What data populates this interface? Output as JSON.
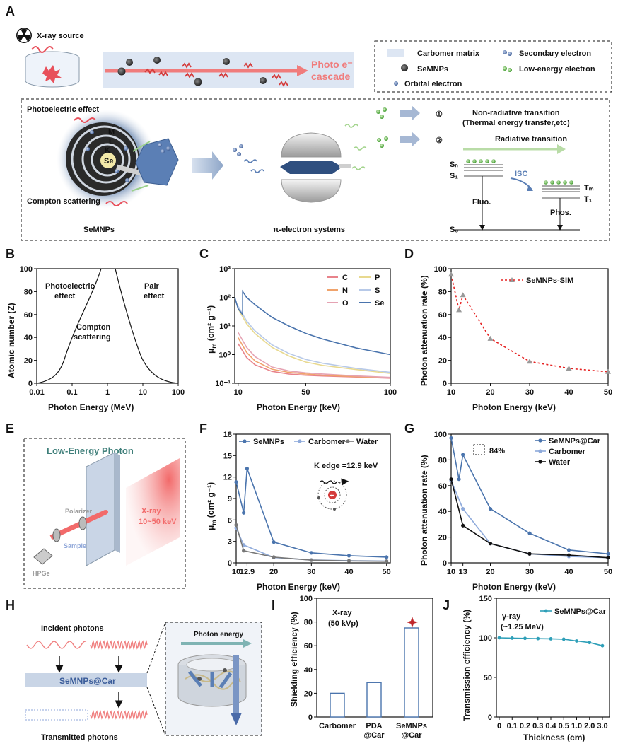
{
  "panel_labels": [
    "A",
    "B",
    "C",
    "D",
    "E",
    "F",
    "G",
    "H",
    "I",
    "J"
  ],
  "panelA": {
    "xray_source": "X-ray source",
    "cascade": "Photo e⁻\ncascade",
    "cascade_l1": "Photo e⁻",
    "cascade_l2": "cascade",
    "legend": [
      "Carbomer matrix",
      "Secondary electron",
      "SeMNPs",
      "Low-energy electron",
      "Orbital electron"
    ],
    "photoelectric": "Photoelectric effect",
    "compton": "Compton scattering",
    "shells": [
      "M",
      "L",
      "K",
      "Se"
    ],
    "semnps": "SeMNPs",
    "pi_systems": "π-electron systems",
    "step1_num": "①",
    "step1": "Non-radiative transition",
    "step1_sub": "(Thermal energy transfer,etc)",
    "step2_num": "②",
    "step2": "Radiative transition",
    "levels": [
      "Sₙ",
      "S₁",
      "S₀",
      "Tₘ",
      "T₁"
    ],
    "isc": "ISC",
    "fluo": "Fluo.",
    "phos": "Phos."
  },
  "panelB": {
    "xlabel": "Photon Energy (MeV)",
    "ylabel": "Atomic number (Z)",
    "xticks": [
      "0.01",
      "0.1",
      "1",
      "10",
      "100"
    ],
    "yticks": [
      "0",
      "20",
      "40",
      "60",
      "80",
      "100"
    ],
    "regions": [
      "Photoelectric",
      "effect",
      "Compton",
      "scattering",
      "Pair",
      "effect"
    ]
  },
  "chart_data": [
    {
      "panel": "C",
      "type": "line",
      "xlabel": "Photon Energy (keV)",
      "ylabel": "μm (cm² g⁻¹)",
      "ylabel_main": "μ",
      "ylabel_sub": "m",
      "ylabel_rest": " (cm² g⁻¹)",
      "xlim": [
        8,
        100
      ],
      "ylim_log": [
        0.1,
        1000
      ],
      "xticks": [
        "10",
        "50",
        "100"
      ],
      "yticks": [
        "10⁻¹",
        "10⁰",
        "10¹",
        "10²",
        "10³"
      ],
      "series": [
        {
          "name": "C",
          "color": "#e8838b",
          "x": [
            10,
            15,
            20,
            30,
            40,
            50,
            60,
            80,
            100
          ],
          "y": [
            2.4,
            0.8,
            0.44,
            0.26,
            0.21,
            0.19,
            0.18,
            0.165,
            0.15
          ]
        },
        {
          "name": "N",
          "color": "#f0a36b",
          "x": [
            10,
            15,
            20,
            30,
            40,
            50,
            60,
            80,
            100
          ],
          "y": [
            3.9,
            1.2,
            0.6,
            0.31,
            0.24,
            0.21,
            0.19,
            0.17,
            0.155
          ]
        },
        {
          "name": "O",
          "color": "#e5a3b3",
          "x": [
            10,
            15,
            20,
            30,
            40,
            50,
            60,
            80,
            100
          ],
          "y": [
            5.9,
            1.8,
            0.85,
            0.37,
            0.27,
            0.23,
            0.21,
            0.18,
            0.16
          ]
        },
        {
          "name": "P",
          "color": "#e8d98f",
          "x": [
            10,
            15,
            20,
            30,
            40,
            50,
            60,
            80,
            100
          ],
          "y": [
            40,
            12,
            5.4,
            1.8,
            0.9,
            0.55,
            0.42,
            0.3,
            0.22
          ]
        },
        {
          "name": "S",
          "color": "#b7c9e8",
          "x": [
            10,
            15,
            20,
            30,
            40,
            50,
            60,
            80,
            100
          ],
          "y": [
            49,
            15,
            6.7,
            2.2,
            1.1,
            0.68,
            0.5,
            0.33,
            0.24
          ]
        },
        {
          "name": "Se",
          "color": "#4a74ad",
          "x": [
            8,
            10,
            12.66,
            12.66,
            15,
            20,
            30,
            40,
            50,
            60,
            80,
            100
          ],
          "y": [
            100,
            40,
            25,
            160,
            100,
            55,
            20,
            10,
            5.5,
            3.5,
            1.7,
            1.0
          ]
        }
      ]
    },
    {
      "panel": "D",
      "type": "line",
      "xlabel": "Photon Energy (keV)",
      "ylabel": "Photon attenuation rate (%)",
      "xlim": [
        10,
        50
      ],
      "ylim": [
        0,
        100
      ],
      "xticks": [
        "10",
        "20",
        "30",
        "40",
        "50"
      ],
      "yticks": [
        "0",
        "20",
        "40",
        "60",
        "80",
        "100"
      ],
      "series": [
        {
          "name": "SeMNPs-SIM",
          "color": "#e62222",
          "x": [
            10,
            12,
            13,
            20,
            30,
            40,
            50
          ],
          "y": [
            95,
            64,
            77,
            39,
            19,
            13,
            10
          ]
        }
      ]
    },
    {
      "panel": "F",
      "type": "line",
      "xlabel": "Photon Energy (keV)",
      "ylabel": "μm (cm² g⁻¹)",
      "ylabel_main": "μ",
      "ylabel_sub": "m",
      "ylabel_rest": " (cm² g⁻¹)",
      "xlim": [
        10,
        51
      ],
      "ylim": [
        0,
        18
      ],
      "xticks": [
        "10",
        "12.9",
        "20",
        "30",
        "40",
        "50"
      ],
      "yticks": [
        "0",
        "3",
        "6",
        "9",
        "12",
        "15",
        "18"
      ],
      "annotation": "K edge =12.9 keV",
      "series": [
        {
          "name": "SeMNPs",
          "color": "#4a74ad",
          "x": [
            10,
            12,
            12.9,
            20,
            30,
            40,
            50
          ],
          "y": [
            11.3,
            7.0,
            13.2,
            2.9,
            1.4,
            1.0,
            0.8
          ]
        },
        {
          "name": "Carbomer",
          "color": "#8eaadb",
          "x": [
            10,
            12,
            20,
            30,
            40,
            50
          ],
          "y": [
            4.9,
            2.5,
            0.75,
            0.4,
            0.3,
            0.25
          ]
        },
        {
          "name": "Water",
          "color": "#777777",
          "x": [
            10,
            12,
            20,
            30,
            40,
            50
          ],
          "y": [
            5.3,
            1.7,
            0.8,
            0.38,
            0.27,
            0.22
          ]
        }
      ]
    },
    {
      "panel": "G",
      "type": "line",
      "xlabel": "Photon Energy (keV)",
      "ylabel": "Photon attenuation rate (%)",
      "xlim": [
        10,
        50
      ],
      "ylim": [
        0,
        100
      ],
      "xticks": [
        "10",
        "13",
        "20",
        "30",
        "40",
        "50"
      ],
      "yticks": [
        "0",
        "20",
        "40",
        "60",
        "80",
        "100"
      ],
      "annotation": "84%",
      "series": [
        {
          "name": "SeMNPs@Car",
          "color": "#4a74ad",
          "x": [
            10,
            12,
            13,
            20,
            30,
            40,
            50
          ],
          "y": [
            97,
            65,
            84,
            42,
            23,
            10,
            7
          ]
        },
        {
          "name": "Carbomer",
          "color": "#8eaadb",
          "x": [
            10,
            13,
            20,
            30,
            40,
            50
          ],
          "y": [
            64,
            42,
            15,
            7,
            5,
            4
          ]
        },
        {
          "name": "Water",
          "color": "#111111",
          "x": [
            10,
            13,
            20,
            30,
            40,
            50
          ],
          "y": [
            65,
            29,
            15,
            7,
            6,
            4
          ]
        }
      ]
    },
    {
      "panel": "I",
      "type": "bar",
      "title": "X-ray",
      "subtitle": "(50 kVp)",
      "ylabel": "Shielding efficiency (%)",
      "ylim": [
        0,
        100
      ],
      "yticks": [
        "0",
        "20",
        "40",
        "60",
        "80",
        "100"
      ],
      "categories": [
        "Carbomer",
        "PDA\n@Car",
        "SeMNPs\n@Car"
      ],
      "values": [
        20,
        29,
        75
      ]
    },
    {
      "panel": "J",
      "type": "line",
      "title": "γ-ray",
      "subtitle": "(~1.25 MeV)",
      "xlabel": "Thickness (cm)",
      "ylabel": "Transmission efficiency (%)",
      "ylim": [
        0,
        150
      ],
      "xticks": [
        "0",
        "0.1",
        "0.2",
        "0.3",
        "0.4",
        "0.5",
        "1.0",
        "2.0",
        "3.0"
      ],
      "yticks": [
        "0",
        "50",
        "100",
        "150"
      ],
      "series": [
        {
          "name": "SeMNPs@Car",
          "color": "#2e9fb8",
          "x": [
            "0",
            "0.1",
            "0.2",
            "0.3",
            "0.4",
            "0.5",
            "1.0",
            "2.0",
            "3.0"
          ],
          "y": [
            100,
            99.6,
            99.3,
            99,
            98.7,
            98.3,
            96,
            94,
            90
          ]
        }
      ]
    }
  ],
  "panelE": {
    "title": "Low-Energy Photon",
    "polarizer": "Polarizer",
    "sample": "Sample",
    "detector": "HPGe",
    "xray": "X-ray",
    "range": "10~50 keV"
  },
  "panelH": {
    "incident": "Incident photons",
    "material": "SeMNPs@Car",
    "transmitted": "Transmitted photons",
    "photon_energy": "Photon energy"
  },
  "colors": {
    "accent_blue": "#4a74ad",
    "light_blue": "#8eaadb",
    "red": "#e62222",
    "pink": "#f07c7c",
    "green": "#62b84a"
  }
}
